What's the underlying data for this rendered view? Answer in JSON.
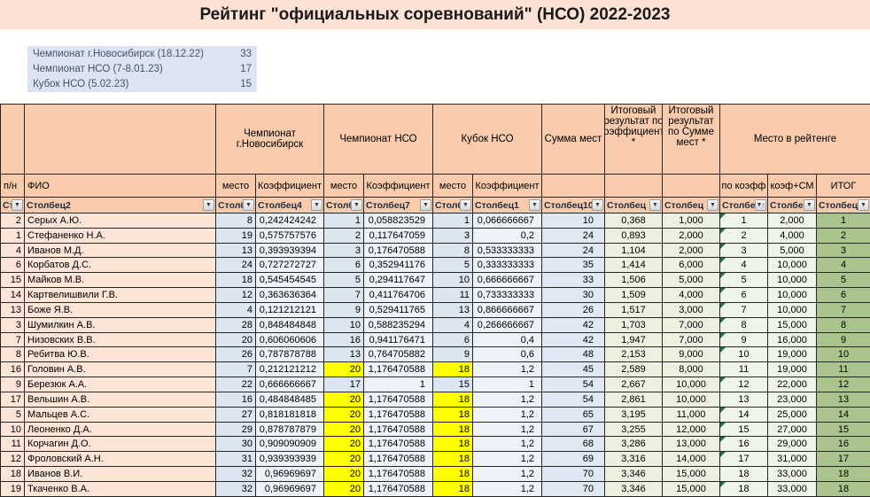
{
  "title": "Рейтинг \"официальных соревнований\" (НСО) 2022-2023",
  "legend": {
    "items": [
      {
        "label": "Чемпионат г.Новосибирск (18.12.22)",
        "value": "33"
      },
      {
        "label": "Чемпионат НСО (7-8.01.23)",
        "value": "17"
      },
      {
        "label": "Кубок НСО (5.02.23)",
        "value": "15"
      }
    ]
  },
  "table": {
    "groups": {
      "nsk": "Чемпионат г.Новосибирск",
      "nso": "Чемпионат НСО",
      "kubok": "Кубок НСО",
      "sum": "Сумма мест",
      "res_coef": "Итоговый результат по Коэффициенту *",
      "res_sum": "Итоговый результат по Сумме мест *",
      "rating": "Место в рейтенге"
    },
    "subheaders": {
      "num": "п/н",
      "fio": "ФИО",
      "place": "место",
      "coef": "Коэффициент",
      "by_coef": "по коэфф",
      "coef_sm": "коэф+СМ",
      "itog": "ИТОГ"
    },
    "filters": [
      "Ст",
      "Столбец2",
      "Столб",
      "Столбец4",
      "Столб",
      "Столбец7",
      "Столб",
      "Столбец1",
      "Столбец10",
      "Столбец",
      "Столбец",
      "Столбе",
      "Столбец",
      "Столбец"
    ],
    "sorted_filter_index": 11,
    "rows": [
      {
        "num": "2",
        "fio": "Серых А.Ю.",
        "p1": "8",
        "k1": "0,242424242",
        "p2": "1",
        "k2": "0,058823529",
        "p3": "1",
        "k3": "0,066666667",
        "sum": "10",
        "rc": "0,368",
        "rs": "1,000",
        "rankc": "1",
        "combo": "2,000",
        "itog": "1",
        "hl": false,
        "flag": true
      },
      {
        "num": "1",
        "fio": "Стефаненко Н.А.",
        "p1": "19",
        "k1": "0,575757576",
        "p2": "2",
        "k2": "0,117647059",
        "p3": "3",
        "k3": "0,2",
        "sum": "24",
        "rc": "0,893",
        "rs": "2,000",
        "rankc": "2",
        "combo": "4,000",
        "itog": "2",
        "hl": false,
        "flag": true
      },
      {
        "num": "4",
        "fio": "Иванов М.Д.",
        "p1": "13",
        "k1": "0,393939394",
        "p2": "3",
        "k2": "0,176470588",
        "p3": "8",
        "k3": "0,533333333",
        "sum": "24",
        "rc": "1,104",
        "rs": "2,000",
        "rankc": "3",
        "combo": "5,000",
        "itog": "3",
        "hl": false,
        "flag": true
      },
      {
        "num": "6",
        "fio": "Корбатов Д.С.",
        "p1": "24",
        "k1": "0,727272727",
        "p2": "6",
        "k2": "0,352941176",
        "p3": "5",
        "k3": "0,333333333",
        "sum": "35",
        "rc": "1,414",
        "rs": "6,000",
        "rankc": "4",
        "combo": "10,000",
        "itog": "4",
        "hl": false,
        "flag": true
      },
      {
        "num": "15",
        "fio": "Майков М.В.",
        "p1": "18",
        "k1": "0,545454545",
        "p2": "5",
        "k2": "0,294117647",
        "p3": "10",
        "k3": "0,666666667",
        "sum": "33",
        "rc": "1,506",
        "rs": "5,000",
        "rankc": "5",
        "combo": "10,000",
        "itog": "5",
        "hl": false,
        "flag": true
      },
      {
        "num": "14",
        "fio": "Картвелишвили Г.В.",
        "p1": "12",
        "k1": "0,363636364",
        "p2": "7",
        "k2": "0,411764706",
        "p3": "11",
        "k3": "0,733333333",
        "sum": "30",
        "rc": "1,509",
        "rs": "4,000",
        "rankc": "6",
        "combo": "10,000",
        "itog": "6",
        "hl": false,
        "flag": true
      },
      {
        "num": "13",
        "fio": "Боже Я.В.",
        "p1": "4",
        "k1": "0,121212121",
        "p2": "9",
        "k2": "0,529411765",
        "p3": "13",
        "k3": "0,866666667",
        "sum": "26",
        "rc": "1,517",
        "rs": "3,000",
        "rankc": "7",
        "combo": "10,000",
        "itog": "7",
        "hl": false,
        "flag": true
      },
      {
        "num": "3",
        "fio": "Шумилкин А.В.",
        "p1": "28",
        "k1": "0,848484848",
        "p2": "10",
        "k2": "0,588235294",
        "p3": "4",
        "k3": "0,266666667",
        "sum": "42",
        "rc": "1,703",
        "rs": "7,000",
        "rankc": "8",
        "combo": "15,000",
        "itog": "8",
        "hl": false,
        "flag": true
      },
      {
        "num": "7",
        "fio": "Низовских В.В.",
        "p1": "20",
        "k1": "0,606060606",
        "p2": "16",
        "k2": "0,941176471",
        "p3": "6",
        "k3": "0,4",
        "sum": "42",
        "rc": "1,947",
        "rs": "7,000",
        "rankc": "9",
        "combo": "16,000",
        "itog": "9",
        "hl": false,
        "flag": true
      },
      {
        "num": "8",
        "fio": "Ребитва Ю.В.",
        "p1": "26",
        "k1": "0,787878788",
        "p2": "13",
        "k2": "0,764705882",
        "p3": "9",
        "k3": "0,6",
        "sum": "48",
        "rc": "2,153",
        "rs": "9,000",
        "rankc": "10",
        "combo": "19,000",
        "itog": "10",
        "hl": false,
        "flag": true
      },
      {
        "num": "16",
        "fio": "Головин А.В.",
        "p1": "7",
        "k1": "0,212121212",
        "p2": "20",
        "k2": "1,176470588",
        "p3": "18",
        "k3": "1,2",
        "sum": "45",
        "rc": "2,589",
        "rs": "8,000",
        "rankc": "11",
        "combo": "19,000",
        "itog": "11",
        "hl": true,
        "flag": false
      },
      {
        "num": "9",
        "fio": "Березюк А.А.",
        "p1": "22",
        "k1": "0,666666667",
        "p2": "17",
        "k2": "1",
        "p3": "15",
        "k3": "1",
        "sum": "54",
        "rc": "2,667",
        "rs": "10,000",
        "rankc": "12",
        "combo": "22,000",
        "itog": "12",
        "hl": false,
        "flag": true
      },
      {
        "num": "17",
        "fio": "Вельшин А.В.",
        "p1": "16",
        "k1": "0,484848485",
        "p2": "20",
        "k2": "1,176470588",
        "p3": "18",
        "k3": "1,2",
        "sum": "54",
        "rc": "2,861",
        "rs": "10,000",
        "rankc": "13",
        "combo": "23,000",
        "itog": "13",
        "hl": true,
        "flag": false
      },
      {
        "num": "5",
        "fio": "Мальцев А.С.",
        "p1": "27",
        "k1": "0,818181818",
        "p2": "20",
        "k2": "1,176470588",
        "p3": "18",
        "k3": "1,2",
        "sum": "65",
        "rc": "3,195",
        "rs": "11,000",
        "rankc": "14",
        "combo": "25,000",
        "itog": "14",
        "hl": true,
        "flag": true
      },
      {
        "num": "10",
        "fio": "Леоненко Д.А.",
        "p1": "29",
        "k1": "0,878787879",
        "p2": "20",
        "k2": "1,176470588",
        "p3": "18",
        "k3": "1,2",
        "sum": "67",
        "rc": "3,255",
        "rs": "12,000",
        "rankc": "15",
        "combo": "27,000",
        "itog": "15",
        "hl": true,
        "flag": true
      },
      {
        "num": "11",
        "fio": "Корчагин Д.О.",
        "p1": "30",
        "k1": "0,909090909",
        "p2": "20",
        "k2": "1,176470588",
        "p3": "18",
        "k3": "1,2",
        "sum": "68",
        "rc": "3,286",
        "rs": "13,000",
        "rankc": "16",
        "combo": "29,000",
        "itog": "16",
        "hl": true,
        "flag": true
      },
      {
        "num": "12",
        "fio": "Фроловский А.Н.",
        "p1": "31",
        "k1": "0,939393939",
        "p2": "20",
        "k2": "1,176470588",
        "p3": "18",
        "k3": "1,2",
        "sum": "69",
        "rc": "3,316",
        "rs": "14,000",
        "rankc": "17",
        "combo": "31,000",
        "itog": "17",
        "hl": true,
        "flag": true
      },
      {
        "num": "18",
        "fio": "Иванов В.И.",
        "p1": "32",
        "k1": "0,96969697",
        "p2": "20",
        "k2": "1,176470588",
        "p3": "18",
        "k3": "1,2",
        "sum": "70",
        "rc": "3,346",
        "rs": "15,000",
        "rankc": "18",
        "combo": "33,000",
        "itog": "18",
        "hl": true,
        "flag": false
      },
      {
        "num": "19",
        "fio": "Ткаченко В.А.",
        "p1": "32",
        "k1": "0,96969697",
        "p2": "20",
        "k2": "1,176470588",
        "p3": "18",
        "k3": "1,2",
        "sum": "70",
        "rc": "3,346",
        "rs": "15,000",
        "rankc": "18",
        "combo": "33,000",
        "itog": "18",
        "hl": true,
        "flag": true
      }
    ]
  },
  "colors": {
    "title_band": "#fbe2d5",
    "header_fill": "#f8cbad",
    "name_fill": "#fce4d6",
    "place_fill": "#dce6f1",
    "coef_fill": "#edf1f8",
    "result_fill": "#ebf1de",
    "rank_fill": "#eef4e8",
    "itog_fill": "#a9c48c",
    "highlight": "#ffff00",
    "legend_fill": "#dbe4f0",
    "error_corner": "#1e7145"
  }
}
